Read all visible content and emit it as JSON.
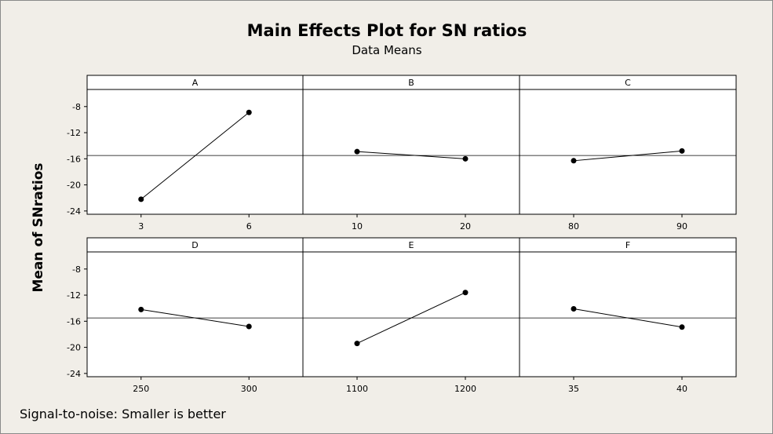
{
  "chart_data": {
    "type": "line",
    "title": "Main Effects Plot for SN ratios",
    "subtitle": "Data Means",
    "ylabel": "Mean of SNratios",
    "footer": "Signal-to-noise: Smaller is better",
    "ylim": [
      -24.5,
      -5.5
    ],
    "yticks": [
      -8,
      -12,
      -16,
      -20,
      -24
    ],
    "overall_mean": -15.5,
    "panels": [
      {
        "name": "A",
        "x": [
          "3",
          "6"
        ],
        "y": [
          -22.2,
          -8.9
        ]
      },
      {
        "name": "B",
        "x": [
          "10",
          "20"
        ],
        "y": [
          -14.9,
          -16.0
        ]
      },
      {
        "name": "C",
        "x": [
          "80",
          "90"
        ],
        "y": [
          -16.3,
          -14.8
        ]
      },
      {
        "name": "D",
        "x": [
          "250",
          "300"
        ],
        "y": [
          -14.2,
          -16.8
        ]
      },
      {
        "name": "E",
        "x": [
          "1100",
          "1200"
        ],
        "y": [
          -19.4,
          -11.6
        ]
      },
      {
        "name": "F",
        "x": [
          "35",
          "40"
        ],
        "y": [
          -14.1,
          -16.9
        ]
      }
    ]
  }
}
